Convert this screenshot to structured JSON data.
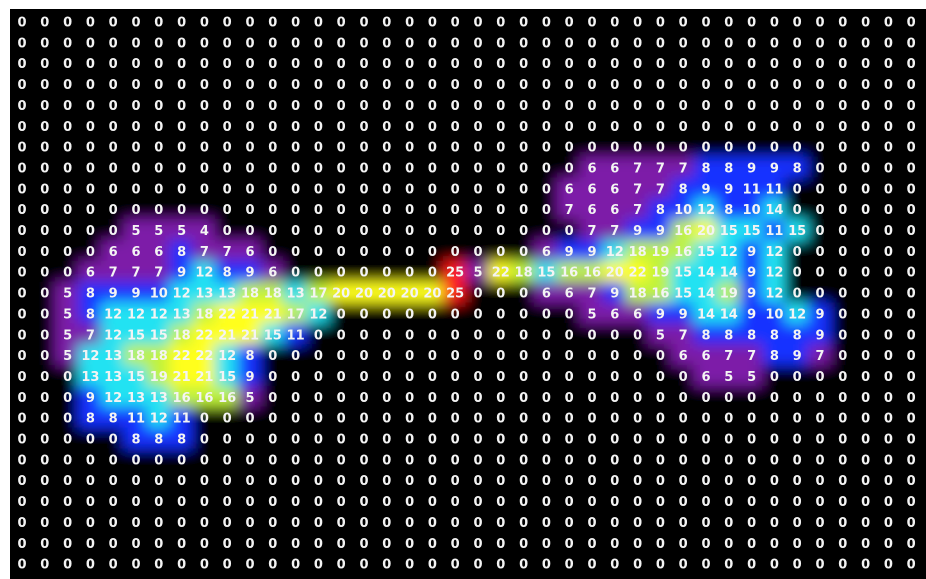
{
  "chart_data": {
    "type": "heatmap",
    "colorscale": [
      {
        "from": 0,
        "color": "#000000"
      },
      {
        "from": 1,
        "color": "#7d1fa8"
      },
      {
        "from": 8,
        "color": "#1830ff"
      },
      {
        "from": 12,
        "color": "#20e2f2"
      },
      {
        "from": 16,
        "color": "#bff23a"
      },
      {
        "from": 20,
        "color": "#ffff1e"
      },
      {
        "from": 25,
        "color": "#ff1c1c"
      }
    ],
    "values": [
      [
        0,
        0,
        0,
        0,
        0,
        0,
        0,
        0,
        0,
        0,
        0,
        0,
        0,
        0,
        0,
        0,
        0,
        0,
        0,
        0,
        0,
        0,
        0,
        0,
        0,
        0,
        0,
        0,
        0,
        0,
        0,
        0,
        0,
        0,
        0,
        0,
        0,
        0,
        0,
        0
      ],
      [
        0,
        0,
        0,
        0,
        0,
        0,
        0,
        0,
        0,
        0,
        0,
        0,
        0,
        0,
        0,
        0,
        0,
        0,
        0,
        0,
        0,
        0,
        0,
        0,
        0,
        0,
        0,
        0,
        0,
        0,
        0,
        0,
        0,
        0,
        0,
        0,
        0,
        0,
        0,
        0
      ],
      [
        0,
        0,
        0,
        0,
        0,
        0,
        0,
        0,
        0,
        0,
        0,
        0,
        0,
        0,
        0,
        0,
        0,
        0,
        0,
        0,
        0,
        0,
        0,
        0,
        0,
        0,
        0,
        0,
        0,
        0,
        0,
        0,
        0,
        0,
        0,
        0,
        0,
        0,
        0,
        0
      ],
      [
        0,
        0,
        0,
        0,
        0,
        0,
        0,
        0,
        0,
        0,
        0,
        0,
        0,
        0,
        0,
        0,
        0,
        0,
        0,
        0,
        0,
        0,
        0,
        0,
        0,
        0,
        0,
        0,
        0,
        0,
        0,
        0,
        0,
        0,
        0,
        0,
        0,
        0,
        0,
        0
      ],
      [
        0,
        0,
        0,
        0,
        0,
        0,
        0,
        0,
        0,
        0,
        0,
        0,
        0,
        0,
        0,
        0,
        0,
        0,
        0,
        0,
        0,
        0,
        0,
        0,
        0,
        0,
        0,
        0,
        0,
        0,
        0,
        0,
        0,
        0,
        0,
        0,
        0,
        0,
        0,
        0
      ],
      [
        0,
        0,
        0,
        0,
        0,
        0,
        0,
        0,
        0,
        0,
        0,
        0,
        0,
        0,
        0,
        0,
        0,
        0,
        0,
        0,
        0,
        0,
        0,
        0,
        0,
        0,
        0,
        0,
        0,
        0,
        0,
        0,
        0,
        0,
        0,
        0,
        0,
        0,
        0,
        0
      ],
      [
        0,
        0,
        0,
        0,
        0,
        0,
        0,
        0,
        0,
        0,
        0,
        0,
        0,
        0,
        0,
        0,
        0,
        0,
        0,
        0,
        0,
        0,
        0,
        0,
        0,
        0,
        0,
        0,
        0,
        0,
        0,
        0,
        0,
        0,
        0,
        0,
        0,
        0,
        0,
        0
      ],
      [
        0,
        0,
        0,
        0,
        0,
        0,
        0,
        0,
        0,
        0,
        0,
        0,
        0,
        0,
        0,
        0,
        0,
        0,
        0,
        0,
        0,
        0,
        0,
        0,
        0,
        6,
        6,
        7,
        7,
        7,
        8,
        8,
        9,
        9,
        8,
        0,
        0,
        0,
        0,
        0
      ],
      [
        0,
        0,
        0,
        0,
        0,
        0,
        0,
        0,
        0,
        0,
        0,
        0,
        0,
        0,
        0,
        0,
        0,
        0,
        0,
        0,
        0,
        0,
        0,
        0,
        6,
        6,
        6,
        7,
        7,
        8,
        9,
        9,
        11,
        11,
        0,
        0,
        0,
        0,
        0,
        0
      ],
      [
        0,
        0,
        0,
        0,
        0,
        0,
        0,
        0,
        0,
        0,
        0,
        0,
        0,
        0,
        0,
        0,
        0,
        0,
        0,
        0,
        0,
        0,
        0,
        0,
        7,
        6,
        6,
        7,
        8,
        10,
        12,
        8,
        10,
        14,
        0,
        0,
        0,
        0,
        0,
        0
      ],
      [
        0,
        0,
        0,
        0,
        0,
        5,
        5,
        5,
        4,
        0,
        0,
        0,
        0,
        0,
        0,
        0,
        0,
        0,
        0,
        0,
        0,
        0,
        0,
        0,
        0,
        7,
        7,
        9,
        9,
        16,
        20,
        15,
        15,
        11,
        15,
        0,
        0,
        0,
        0,
        0
      ],
      [
        0,
        0,
        0,
        0,
        6,
        6,
        6,
        8,
        7,
        7,
        6,
        0,
        0,
        0,
        0,
        0,
        0,
        0,
        0,
        0,
        0,
        0,
        0,
        6,
        9,
        9,
        12,
        18,
        19,
        16,
        15,
        12,
        9,
        12,
        0,
        0,
        0,
        0,
        0,
        0
      ],
      [
        0,
        0,
        0,
        6,
        7,
        7,
        7,
        9,
        12,
        8,
        9,
        6,
        0,
        0,
        0,
        0,
        0,
        0,
        0,
        25,
        5,
        22,
        18,
        15,
        16,
        16,
        20,
        22,
        19,
        15,
        14,
        14,
        9,
        12,
        0,
        0,
        0,
        0,
        0,
        0
      ],
      [
        0,
        0,
        5,
        8,
        9,
        9,
        10,
        12,
        13,
        13,
        18,
        18,
        13,
        17,
        20,
        20,
        20,
        20,
        20,
        25,
        0,
        0,
        0,
        6,
        6,
        7,
        9,
        18,
        16,
        15,
        14,
        19,
        9,
        12,
        0,
        0,
        0,
        0,
        0,
        0
      ],
      [
        0,
        0,
        5,
        8,
        12,
        12,
        12,
        13,
        18,
        22,
        21,
        21,
        17,
        12,
        0,
        0,
        0,
        0,
        0,
        0,
        0,
        0,
        0,
        0,
        0,
        5,
        6,
        6,
        9,
        9,
        14,
        14,
        9,
        10,
        12,
        9,
        0,
        0,
        0,
        0
      ],
      [
        0,
        0,
        5,
        7,
        12,
        15,
        15,
        18,
        22,
        21,
        21,
        15,
        11,
        0,
        0,
        0,
        0,
        0,
        0,
        0,
        0,
        0,
        0,
        0,
        0,
        0,
        0,
        0,
        5,
        7,
        8,
        8,
        8,
        8,
        8,
        9,
        0,
        0,
        0,
        0
      ],
      [
        0,
        0,
        5,
        12,
        13,
        18,
        18,
        22,
        22,
        12,
        8,
        0,
        0,
        0,
        0,
        0,
        0,
        0,
        0,
        0,
        0,
        0,
        0,
        0,
        0,
        0,
        0,
        0,
        0,
        6,
        6,
        7,
        7,
        8,
        9,
        7,
        0,
        0,
        0,
        0
      ],
      [
        0,
        0,
        0,
        13,
        13,
        15,
        19,
        21,
        21,
        15,
        9,
        0,
        0,
        0,
        0,
        0,
        0,
        0,
        0,
        0,
        0,
        0,
        0,
        0,
        0,
        0,
        0,
        0,
        0,
        0,
        6,
        5,
        5,
        0,
        0,
        0,
        0,
        0,
        0,
        0
      ],
      [
        0,
        0,
        0,
        9,
        12,
        13,
        13,
        16,
        16,
        16,
        5,
        0,
        0,
        0,
        0,
        0,
        0,
        0,
        0,
        0,
        0,
        0,
        0,
        0,
        0,
        0,
        0,
        0,
        0,
        0,
        0,
        0,
        0,
        0,
        0,
        0,
        0,
        0,
        0,
        0
      ],
      [
        0,
        0,
        0,
        8,
        8,
        11,
        12,
        11,
        0,
        0,
        0,
        0,
        0,
        0,
        0,
        0,
        0,
        0,
        0,
        0,
        0,
        0,
        0,
        0,
        0,
        0,
        0,
        0,
        0,
        0,
        0,
        0,
        0,
        0,
        0,
        0,
        0,
        0,
        0,
        0
      ],
      [
        0,
        0,
        0,
        0,
        0,
        8,
        8,
        8,
        0,
        0,
        0,
        0,
        0,
        0,
        0,
        0,
        0,
        0,
        0,
        0,
        0,
        0,
        0,
        0,
        0,
        0,
        0,
        0,
        0,
        0,
        0,
        0,
        0,
        0,
        0,
        0,
        0,
        0,
        0,
        0
      ],
      [
        0,
        0,
        0,
        0,
        0,
        0,
        0,
        0,
        0,
        0,
        0,
        0,
        0,
        0,
        0,
        0,
        0,
        0,
        0,
        0,
        0,
        0,
        0,
        0,
        0,
        0,
        0,
        0,
        0,
        0,
        0,
        0,
        0,
        0,
        0,
        0,
        0,
        0,
        0,
        0
      ],
      [
        0,
        0,
        0,
        0,
        0,
        0,
        0,
        0,
        0,
        0,
        0,
        0,
        0,
        0,
        0,
        0,
        0,
        0,
        0,
        0,
        0,
        0,
        0,
        0,
        0,
        0,
        0,
        0,
        0,
        0,
        0,
        0,
        0,
        0,
        0,
        0,
        0,
        0,
        0,
        0
      ],
      [
        0,
        0,
        0,
        0,
        0,
        0,
        0,
        0,
        0,
        0,
        0,
        0,
        0,
        0,
        0,
        0,
        0,
        0,
        0,
        0,
        0,
        0,
        0,
        0,
        0,
        0,
        0,
        0,
        0,
        0,
        0,
        0,
        0,
        0,
        0,
        0,
        0,
        0,
        0,
        0
      ],
      [
        0,
        0,
        0,
        0,
        0,
        0,
        0,
        0,
        0,
        0,
        0,
        0,
        0,
        0,
        0,
        0,
        0,
        0,
        0,
        0,
        0,
        0,
        0,
        0,
        0,
        0,
        0,
        0,
        0,
        0,
        0,
        0,
        0,
        0,
        0,
        0,
        0,
        0,
        0,
        0
      ],
      [
        0,
        0,
        0,
        0,
        0,
        0,
        0,
        0,
        0,
        0,
        0,
        0,
        0,
        0,
        0,
        0,
        0,
        0,
        0,
        0,
        0,
        0,
        0,
        0,
        0,
        0,
        0,
        0,
        0,
        0,
        0,
        0,
        0,
        0,
        0,
        0,
        0,
        0,
        0,
        0
      ],
      [
        0,
        0,
        0,
        0,
        0,
        0,
        0,
        0,
        0,
        0,
        0,
        0,
        0,
        0,
        0,
        0,
        0,
        0,
        0,
        0,
        0,
        0,
        0,
        0,
        0,
        0,
        0,
        0,
        0,
        0,
        0,
        0,
        0,
        0,
        0,
        0,
        0,
        0,
        0,
        0
      ]
    ]
  }
}
